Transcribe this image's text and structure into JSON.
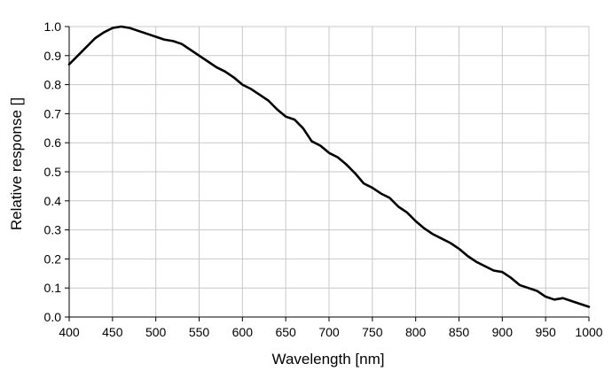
{
  "chart_data": {
    "type": "line",
    "title": "",
    "xlabel": "Wavelength [nm]",
    "ylabel": "Relative response []",
    "xlim": [
      400,
      1000
    ],
    "ylim": [
      0,
      1.0
    ],
    "grid": true,
    "legend": "none",
    "xticks": [
      400,
      450,
      500,
      550,
      600,
      650,
      700,
      750,
      800,
      850,
      900,
      950,
      1000
    ],
    "yticks": [
      0.0,
      0.1,
      0.2,
      0.3,
      0.4,
      0.5,
      0.6,
      0.7,
      0.8,
      0.9,
      1.0
    ],
    "xtick_labels": [
      "400",
      "450",
      "500",
      "550",
      "600",
      "650",
      "700",
      "750",
      "800",
      "850",
      "900",
      "950",
      "1000"
    ],
    "ytick_labels": [
      "0.0",
      "0.1",
      "0.2",
      "0.3",
      "0.4",
      "0.5",
      "0.6",
      "0.7",
      "0.8",
      "0.9",
      "1.0"
    ],
    "series": [
      {
        "color": "#000000",
        "x": [
          400,
          410,
          420,
          430,
          440,
          450,
          460,
          470,
          480,
          490,
          500,
          510,
          520,
          530,
          540,
          550,
          560,
          570,
          580,
          590,
          600,
          610,
          620,
          630,
          640,
          650,
          660,
          670,
          680,
          690,
          700,
          710,
          720,
          730,
          740,
          750,
          760,
          770,
          780,
          790,
          800,
          810,
          820,
          830,
          840,
          850,
          860,
          870,
          880,
          890,
          900,
          910,
          920,
          930,
          940,
          950,
          960,
          970,
          980,
          990,
          1000
        ],
        "y": [
          0.87,
          0.9,
          0.93,
          0.96,
          0.98,
          0.995,
          1.0,
          0.995,
          0.985,
          0.975,
          0.965,
          0.955,
          0.95,
          0.94,
          0.92,
          0.9,
          0.88,
          0.86,
          0.845,
          0.825,
          0.8,
          0.785,
          0.765,
          0.745,
          0.715,
          0.69,
          0.68,
          0.65,
          0.605,
          0.59,
          0.565,
          0.55,
          0.525,
          0.495,
          0.46,
          0.445,
          0.425,
          0.41,
          0.38,
          0.36,
          0.33,
          0.305,
          0.285,
          0.27,
          0.255,
          0.235,
          0.21,
          0.19,
          0.175,
          0.16,
          0.155,
          0.135,
          0.11,
          0.1,
          0.09,
          0.07,
          0.06,
          0.065,
          0.055,
          0.045,
          0.035
        ]
      }
    ]
  }
}
